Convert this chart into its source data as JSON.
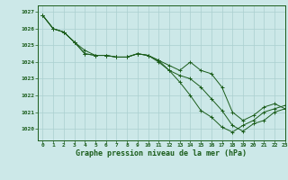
{
  "title": "Graphe pression niveau de la mer (hPa)",
  "background_color": "#cce8e8",
  "grid_color": "#aacfcf",
  "line_color": "#1a5c1a",
  "xlim": [
    -0.5,
    23
  ],
  "ylim": [
    1019.3,
    1027.4
  ],
  "yticks": [
    1020,
    1021,
    1022,
    1023,
    1024,
    1025,
    1026,
    1027
  ],
  "xticks": [
    0,
    1,
    2,
    3,
    4,
    5,
    6,
    7,
    8,
    9,
    10,
    11,
    12,
    13,
    14,
    15,
    16,
    17,
    18,
    19,
    20,
    21,
    22,
    23
  ],
  "series": [
    [
      1026.8,
      1026.0,
      1025.8,
      1025.2,
      1024.7,
      1024.4,
      1024.4,
      1024.3,
      1024.3,
      1024.5,
      1024.4,
      1024.1,
      1023.8,
      1023.5,
      1024.0,
      1023.5,
      1023.3,
      1022.5,
      1021.0,
      1020.5,
      1020.8,
      1021.3,
      1021.5,
      1021.2
    ],
    [
      1026.8,
      1026.0,
      1025.8,
      1025.2,
      1024.5,
      1024.4,
      1024.4,
      1024.3,
      1024.3,
      1024.5,
      1024.4,
      1024.0,
      1023.5,
      1023.2,
      1023.0,
      1022.5,
      1021.8,
      1021.1,
      1020.2,
      1019.85,
      1020.3,
      1020.5,
      1021.0,
      1021.2
    ],
    [
      1026.8,
      1026.0,
      1025.8,
      1025.2,
      1024.5,
      1024.4,
      1024.4,
      1024.3,
      1024.3,
      1024.5,
      1024.4,
      1024.1,
      1023.5,
      1022.8,
      1022.0,
      1021.1,
      1020.7,
      1020.1,
      1019.8,
      1020.2,
      1020.5,
      1021.0,
      1021.2,
      1021.4
    ]
  ]
}
